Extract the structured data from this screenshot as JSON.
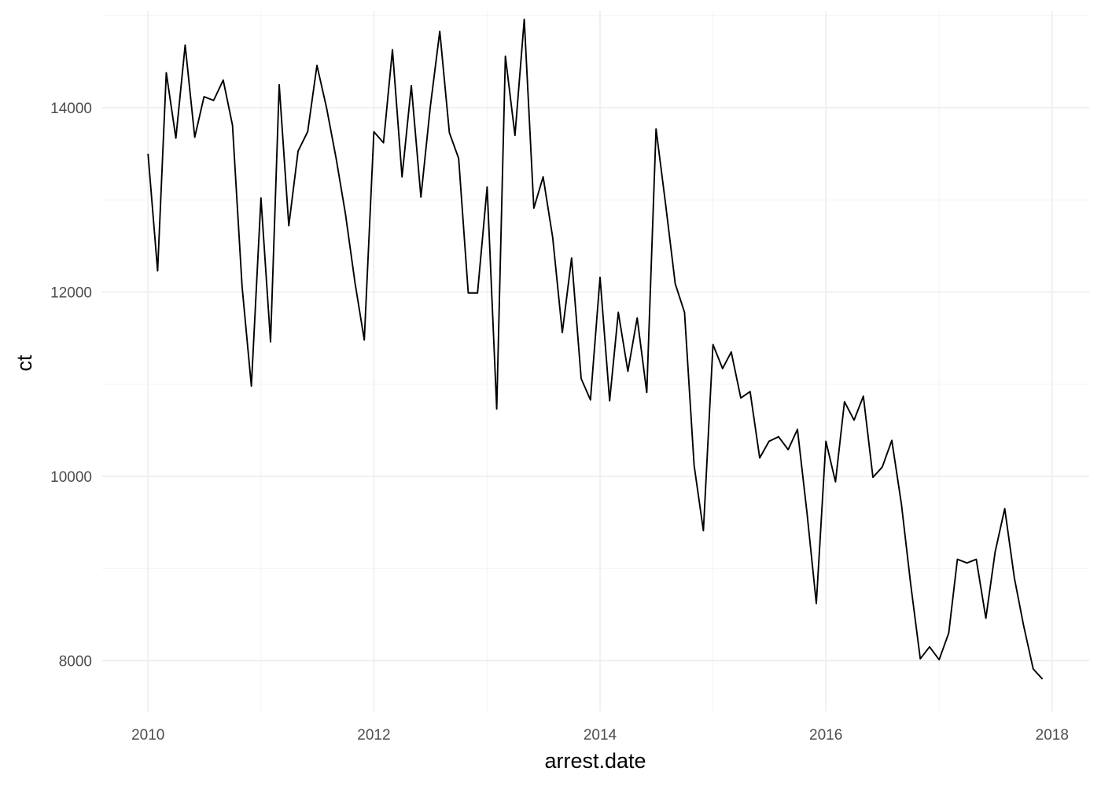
{
  "chart_data": {
    "type": "line",
    "xlabel": "arrest.date",
    "ylabel": "ct",
    "xlim": [
      "2009-08-06",
      "2018-05-01"
    ],
    "ylim": [
      7450,
      15050
    ],
    "x_ticks": [
      "2010",
      "2012",
      "2014",
      "2016",
      "2018"
    ],
    "y_ticks": [
      "8000",
      "10000",
      "12000",
      "14000"
    ],
    "grid": true,
    "legend": "none",
    "line_color": "#000000",
    "series": [
      {
        "x": [
          "2010-01",
          "2010-02",
          "2010-03",
          "2010-04",
          "2010-05",
          "2010-06",
          "2010-07",
          "2010-08",
          "2010-09",
          "2010-10",
          "2010-11",
          "2010-12",
          "2011-01",
          "2011-02",
          "2011-03",
          "2011-04",
          "2011-05",
          "2011-06",
          "2011-07",
          "2011-08",
          "2011-09",
          "2011-10",
          "2011-11",
          "2011-12",
          "2012-01",
          "2012-02",
          "2012-03",
          "2012-04",
          "2012-05",
          "2012-06",
          "2012-07",
          "2012-08",
          "2012-09",
          "2012-10",
          "2012-11",
          "2012-12",
          "2013-01",
          "2013-02",
          "2013-03",
          "2013-04",
          "2013-05",
          "2013-06",
          "2013-07",
          "2013-08",
          "2013-09",
          "2013-10",
          "2013-11",
          "2013-12",
          "2014-01",
          "2014-02",
          "2014-03",
          "2014-04",
          "2014-05",
          "2014-06",
          "2014-07",
          "2014-08",
          "2014-09",
          "2014-10",
          "2014-11",
          "2014-12",
          "2015-01",
          "2015-02",
          "2015-03",
          "2015-04",
          "2015-05",
          "2015-06",
          "2015-07",
          "2015-08",
          "2015-09",
          "2015-10",
          "2015-11",
          "2015-12",
          "2016-01",
          "2016-02",
          "2016-03",
          "2016-04",
          "2016-05",
          "2016-06",
          "2016-07",
          "2016-08",
          "2016-09",
          "2016-10",
          "2016-11",
          "2016-12",
          "2017-01",
          "2017-02",
          "2017-03",
          "2017-04",
          "2017-05",
          "2017-06",
          "2017-07",
          "2017-08",
          "2017-09",
          "2017-10",
          "2017-11",
          "2017-12"
        ],
        "values": [
          13500,
          12230,
          14380,
          13670,
          14680,
          13680,
          14120,
          14080,
          14300,
          13810,
          12060,
          10980,
          13020,
          11460,
          14250,
          12720,
          13530,
          13740,
          14460,
          14000,
          13450,
          12850,
          12100,
          11480,
          13740,
          13620,
          14630,
          13250,
          14240,
          13030,
          14000,
          14830,
          13730,
          13450,
          11990,
          11990,
          13140,
          10730,
          14560,
          13700,
          14960,
          12910,
          13250,
          12590,
          11560,
          12370,
          11060,
          10830,
          12160,
          10820,
          11780,
          11140,
          11720,
          10910,
          13770,
          12950,
          12090,
          11780,
          10120,
          9410,
          11430,
          11170,
          11350,
          10850,
          10920,
          10200,
          10380,
          10430,
          10290,
          10510,
          9600,
          8620,
          10380,
          9940,
          10810,
          10610,
          10870,
          9990,
          10100,
          10390,
          9700,
          8830,
          8020,
          8150,
          8010,
          8300,
          9100,
          9060,
          9100,
          8460,
          9180,
          9650,
          8900,
          8380,
          7910,
          7800
        ]
      }
    ]
  }
}
